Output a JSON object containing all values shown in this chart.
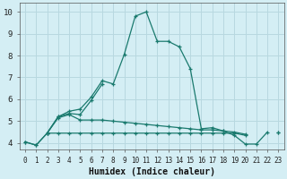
{
  "xlabel": "Humidex (Indice chaleur)",
  "bg_color": "#d4eef4",
  "grid_color": "#b8d8e0",
  "line_color": "#1a7a6e",
  "xlim": [
    -0.5,
    23.5
  ],
  "ylim": [
    3.7,
    10.4
  ],
  "xticks": [
    0,
    1,
    2,
    3,
    4,
    5,
    6,
    7,
    8,
    9,
    10,
    11,
    12,
    13,
    14,
    15,
    16,
    17,
    18,
    19,
    20,
    21,
    22,
    23
  ],
  "yticks": [
    4,
    5,
    6,
    7,
    8,
    9,
    10
  ],
  "lines": [
    {
      "x": [
        0,
        1,
        2,
        3,
        4,
        5,
        6,
        7,
        8,
        9,
        10,
        11,
        12,
        13,
        14,
        15,
        16,
        17,
        18,
        19,
        20,
        21,
        22,
        23
      ],
      "y": [
        4.05,
        3.9,
        4.45,
        5.2,
        5.45,
        5.55,
        6.1,
        6.85,
        6.7,
        8.05,
        9.8,
        10.0,
        8.65,
        8.65,
        8.4,
        7.4,
        4.65,
        4.7,
        4.55,
        4.35,
        3.95,
        3.95,
        4.5,
        null
      ]
    },
    {
      "x": [
        0,
        1,
        2,
        3,
        4,
        5,
        6,
        7,
        8
      ],
      "y": [
        4.05,
        3.9,
        4.45,
        5.2,
        5.35,
        5.3,
        5.95,
        6.7,
        null
      ]
    },
    {
      "x": [
        2,
        3,
        4,
        5,
        6,
        7,
        8,
        9,
        10,
        11,
        12,
        13,
        14,
        15,
        16,
        17,
        18,
        19,
        20,
        21,
        22,
        23
      ],
      "y": [
        4.45,
        5.15,
        5.3,
        5.05,
        5.05,
        5.05,
        5.0,
        4.95,
        4.9,
        4.85,
        4.8,
        4.75,
        4.7,
        4.65,
        4.6,
        4.6,
        4.55,
        4.5,
        4.4,
        null,
        null,
        4.5
      ]
    },
    {
      "x": [
        2,
        3,
        4,
        5,
        6,
        7,
        8,
        9,
        10,
        11,
        12,
        13,
        14,
        15,
        16,
        17,
        18,
        19,
        20,
        21,
        22,
        23
      ],
      "y": [
        4.45,
        4.45,
        4.45,
        4.45,
        4.45,
        4.45,
        4.45,
        4.45,
        4.45,
        4.45,
        4.45,
        4.45,
        4.45,
        4.45,
        4.45,
        4.45,
        4.45,
        4.45,
        4.35,
        null,
        null,
        4.5
      ]
    }
  ]
}
